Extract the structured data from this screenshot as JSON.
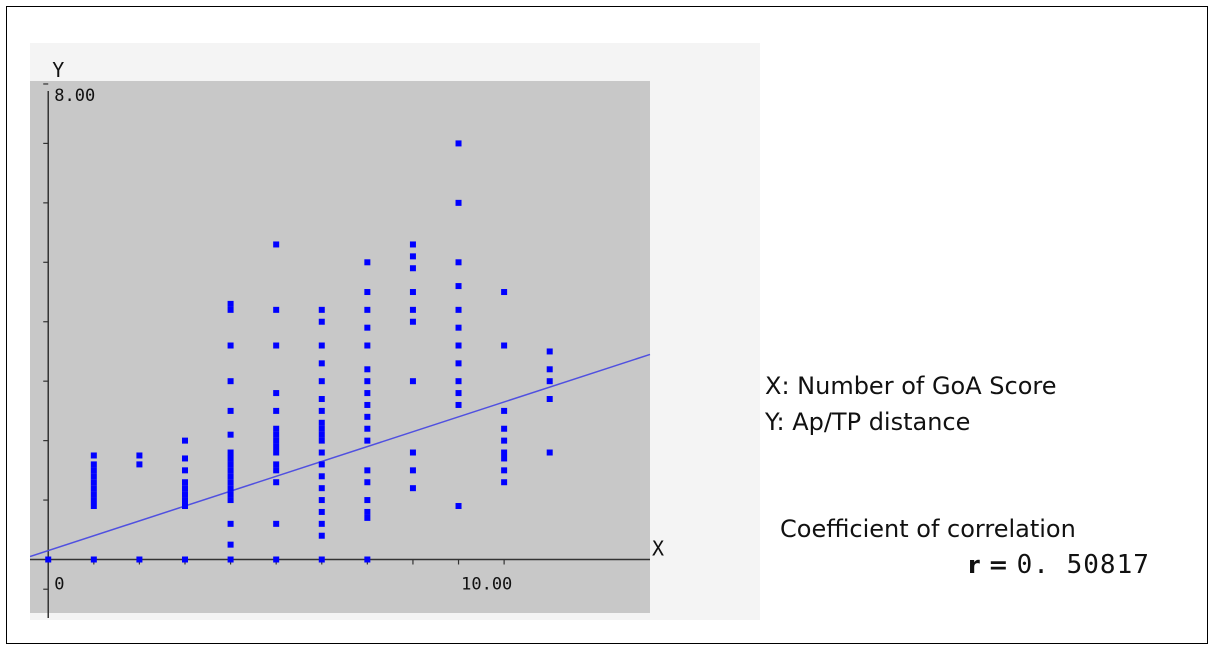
{
  "chart_data": {
    "type": "scatter",
    "xlabel": "X",
    "ylabel": "Y",
    "xlim": [
      -0.4,
      13.2
    ],
    "ylim": [
      -0.9,
      8.05
    ],
    "ytick_label": "8.00",
    "xtick_labels": [
      "0",
      "10.00"
    ],
    "x_ticks": [
      0,
      1,
      2,
      3,
      4,
      5,
      6,
      7,
      8,
      9,
      10
    ],
    "y_ticks": [
      1,
      2,
      3,
      4,
      5,
      6,
      7,
      8
    ],
    "marker_color": "#0000ff",
    "background_color": "#c8c8c8",
    "regression_line": {
      "color": "#5050e0",
      "slope": 0.25,
      "intercept": 0.15
    },
    "points": [
      [
        0,
        0.0
      ],
      [
        1,
        0.0
      ],
      [
        1,
        0.9
      ],
      [
        1,
        1.0
      ],
      [
        1,
        1.1
      ],
      [
        1,
        1.2
      ],
      [
        1,
        1.3
      ],
      [
        1,
        1.4
      ],
      [
        1,
        1.5
      ],
      [
        1,
        1.6
      ],
      [
        1,
        1.75
      ],
      [
        2,
        0.0
      ],
      [
        2,
        1.6
      ],
      [
        2,
        1.75
      ],
      [
        3,
        0.0
      ],
      [
        3,
        0.9
      ],
      [
        3,
        1.0
      ],
      [
        3,
        1.1
      ],
      [
        3,
        1.2
      ],
      [
        3,
        1.3
      ],
      [
        3,
        1.5
      ],
      [
        3,
        1.7
      ],
      [
        3,
        2.0
      ],
      [
        4,
        0.0
      ],
      [
        4,
        0.25
      ],
      [
        4,
        0.6
      ],
      [
        4,
        1.0
      ],
      [
        4,
        1.1
      ],
      [
        4,
        1.2
      ],
      [
        4,
        1.3
      ],
      [
        4,
        1.4
      ],
      [
        4,
        1.5
      ],
      [
        4,
        1.6
      ],
      [
        4,
        1.7
      ],
      [
        4,
        1.8
      ],
      [
        4,
        2.1
      ],
      [
        4,
        2.5
      ],
      [
        4,
        3.0
      ],
      [
        4,
        3.6
      ],
      [
        4,
        4.2
      ],
      [
        4,
        4.3
      ],
      [
        5,
        0.0
      ],
      [
        5,
        0.6
      ],
      [
        5,
        1.3
      ],
      [
        5,
        1.5
      ],
      [
        5,
        1.6
      ],
      [
        5,
        1.8
      ],
      [
        5,
        1.9
      ],
      [
        5,
        2.0
      ],
      [
        5,
        2.1
      ],
      [
        5,
        2.2
      ],
      [
        5,
        2.5
      ],
      [
        5,
        2.8
      ],
      [
        5,
        3.6
      ],
      [
        5,
        4.2
      ],
      [
        5,
        5.3
      ],
      [
        6,
        0.0
      ],
      [
        6,
        0.4
      ],
      [
        6,
        0.6
      ],
      [
        6,
        0.8
      ],
      [
        6,
        1.0
      ],
      [
        6,
        1.2
      ],
      [
        6,
        1.4
      ],
      [
        6,
        1.6
      ],
      [
        6,
        1.8
      ],
      [
        6,
        2.0
      ],
      [
        6,
        2.1
      ],
      [
        6,
        2.2
      ],
      [
        6,
        2.3
      ],
      [
        6,
        2.5
      ],
      [
        6,
        2.7
      ],
      [
        6,
        3.0
      ],
      [
        6,
        3.3
      ],
      [
        6,
        3.6
      ],
      [
        6,
        4.0
      ],
      [
        6,
        4.2
      ],
      [
        7,
        0.0
      ],
      [
        7,
        0.7
      ],
      [
        7,
        0.8
      ],
      [
        7,
        1.0
      ],
      [
        7,
        1.3
      ],
      [
        7,
        1.5
      ],
      [
        7,
        2.0
      ],
      [
        7,
        2.2
      ],
      [
        7,
        2.4
      ],
      [
        7,
        2.6
      ],
      [
        7,
        2.8
      ],
      [
        7,
        3.0
      ],
      [
        7,
        3.2
      ],
      [
        7,
        3.6
      ],
      [
        7,
        3.9
      ],
      [
        7,
        4.2
      ],
      [
        7,
        4.5
      ],
      [
        7,
        5.0
      ],
      [
        8,
        1.2
      ],
      [
        8,
        1.5
      ],
      [
        8,
        1.8
      ],
      [
        8,
        3.0
      ],
      [
        8,
        4.0
      ],
      [
        8,
        4.2
      ],
      [
        8,
        4.5
      ],
      [
        8,
        4.9
      ],
      [
        8,
        5.1
      ],
      [
        8,
        5.3
      ],
      [
        9,
        0.9
      ],
      [
        9,
        2.6
      ],
      [
        9,
        2.8
      ],
      [
        9,
        3.0
      ],
      [
        9,
        3.3
      ],
      [
        9,
        3.6
      ],
      [
        9,
        3.9
      ],
      [
        9,
        4.2
      ],
      [
        9,
        4.6
      ],
      [
        9,
        5.0
      ],
      [
        9,
        6.0
      ],
      [
        9,
        7.0
      ],
      [
        10,
        1.3
      ],
      [
        10,
        1.5
      ],
      [
        10,
        1.7
      ],
      [
        10,
        1.8
      ],
      [
        10,
        2.0
      ],
      [
        10,
        2.2
      ],
      [
        10,
        2.5
      ],
      [
        10,
        3.6
      ],
      [
        10,
        4.5
      ],
      [
        11,
        1.8
      ],
      [
        11,
        2.7
      ],
      [
        11,
        3.0
      ],
      [
        11,
        3.2
      ],
      [
        11,
        3.5
      ]
    ]
  },
  "annotation": {
    "x_desc": "X: Number of GoA Score",
    "y_desc": "Y: Ap/TP distance",
    "corr_title": "Coefficient of correlation",
    "corr_label": "r = ",
    "corr_value": "0. 50817"
  }
}
